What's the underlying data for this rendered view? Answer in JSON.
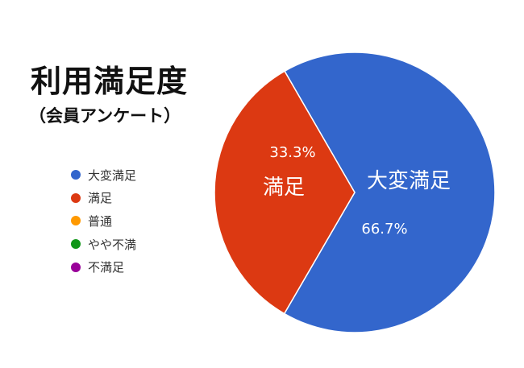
{
  "title": "利用満足度",
  "subtitle": "（会員アンケート）",
  "chart_data": {
    "type": "pie",
    "legend_position": "left",
    "slices": [
      {
        "label": "大変満足",
        "value": 66.7,
        "value_label": "66.7%",
        "color": "#3366cc"
      },
      {
        "label": "満足",
        "value": 33.3,
        "value_label": "33.3%",
        "color": "#dc3912"
      },
      {
        "label": "普通",
        "value": 0,
        "value_label": "",
        "color": "#ff9900"
      },
      {
        "label": "やや不満",
        "value": 0,
        "value_label": "",
        "color": "#109618"
      },
      {
        "label": "不満足",
        "value": 0,
        "value_label": "",
        "color": "#990099"
      }
    ]
  }
}
